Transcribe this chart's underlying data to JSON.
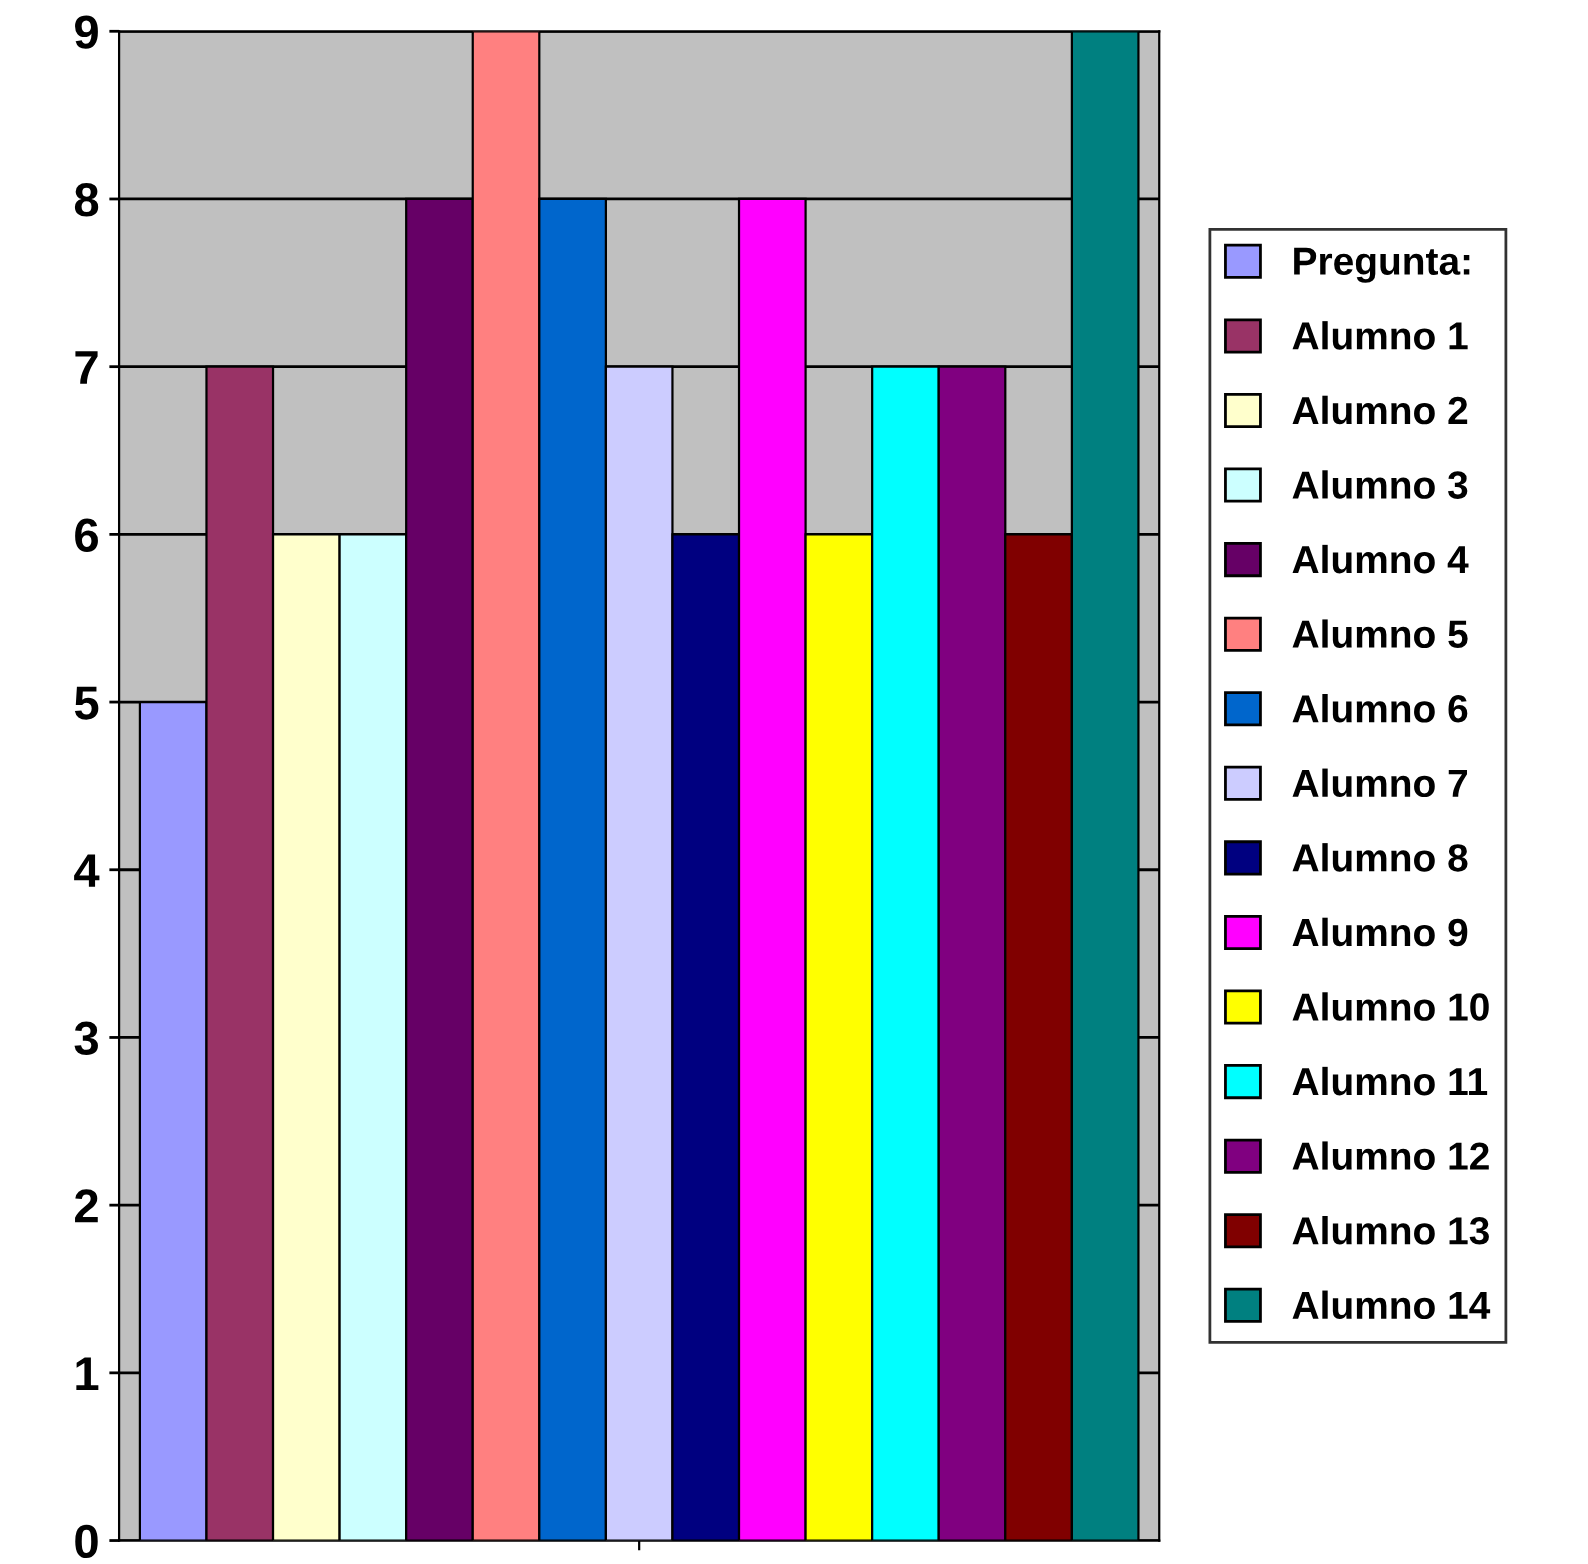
{
  "chart_data": {
    "type": "bar",
    "categories": [
      null
    ],
    "ylim": [
      0,
      9
    ],
    "yticks": [
      0,
      1,
      2,
      3,
      4,
      5,
      6,
      7,
      8,
      9
    ],
    "grid": "y",
    "legend": "right",
    "series": [
      {
        "name": "Pregunta:",
        "color": "#9999ff",
        "values": [
          5
        ]
      },
      {
        "name": "Alumno 1",
        "color": "#993366",
        "values": [
          7
        ]
      },
      {
        "name": "Alumno 2",
        "color": "#ffffcc",
        "values": [
          6
        ]
      },
      {
        "name": "Alumno 3",
        "color": "#ccffff",
        "values": [
          6
        ]
      },
      {
        "name": "Alumno 4",
        "color": "#660066",
        "values": [
          8
        ]
      },
      {
        "name": "Alumno 5",
        "color": "#ff8080",
        "values": [
          9
        ]
      },
      {
        "name": "Alumno 6",
        "color": "#0066cc",
        "values": [
          8
        ]
      },
      {
        "name": "Alumno 7",
        "color": "#ccccff",
        "values": [
          7
        ]
      },
      {
        "name": "Alumno 8",
        "color": "#000080",
        "values": [
          6
        ]
      },
      {
        "name": "Alumno 9",
        "color": "#ff00ff",
        "values": [
          8
        ]
      },
      {
        "name": "Alumno 10",
        "color": "#ffff00",
        "values": [
          6
        ]
      },
      {
        "name": "Alumno 11",
        "color": "#00ffff",
        "values": [
          7
        ]
      },
      {
        "name": "Alumno 12",
        "color": "#800080",
        "values": [
          7
        ]
      },
      {
        "name": "Alumno 13",
        "color": "#800000",
        "values": [
          6
        ]
      },
      {
        "name": "Alumno 14",
        "color": "#008080",
        "values": [
          9
        ]
      }
    ]
  }
}
